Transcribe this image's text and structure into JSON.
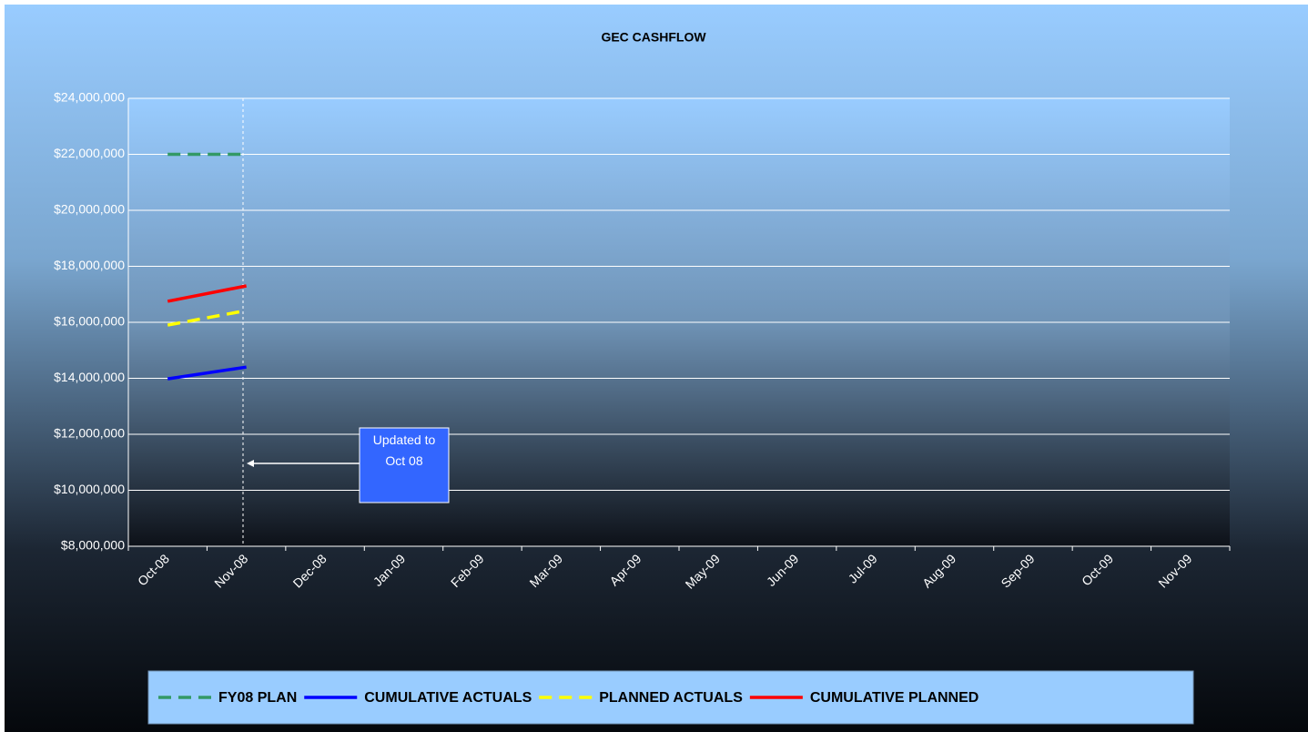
{
  "chart_data": {
    "type": "line",
    "title": "GEC CASHFLOW",
    "categories": [
      "Oct-08",
      "Nov-08",
      "Dec-08",
      "Jan-09",
      "Feb-09",
      "Mar-09",
      "Apr-09",
      "May-09",
      "Jun-09",
      "Jul-09",
      "Aug-09",
      "Sep-09",
      "Oct-09",
      "Nov-09"
    ],
    "series": [
      {
        "name": "FY08 PLAN",
        "color": "#339966",
        "dashed": true,
        "values": [
          22000000,
          22000000,
          null,
          null,
          null,
          null,
          null,
          null,
          null,
          null,
          null,
          null,
          null,
          null
        ]
      },
      {
        "name": "CUMULATIVE ACTUALS",
        "color": "#0000ff",
        "dashed": false,
        "values": [
          13980000,
          14400000,
          null,
          null,
          null,
          null,
          null,
          null,
          null,
          null,
          null,
          null,
          null,
          null
        ]
      },
      {
        "name": "PLANNED ACTUALS",
        "color": "#ffff00",
        "dashed": true,
        "values": [
          15900000,
          16420000,
          null,
          null,
          null,
          null,
          null,
          null,
          null,
          null,
          null,
          null,
          null,
          null
        ]
      },
      {
        "name": "CUMULATIVE PLANNED",
        "color": "#ff0000",
        "dashed": false,
        "values": [
          16750000,
          17300000,
          null,
          null,
          null,
          null,
          null,
          null,
          null,
          null,
          null,
          null,
          null,
          null
        ]
      }
    ],
    "ylim": [
      8000000,
      24000000
    ],
    "yticks": [
      {
        "value": 8000000,
        "label": "$8,000,000"
      },
      {
        "value": 10000000,
        "label": "$10,000,000"
      },
      {
        "value": 12000000,
        "label": "$12,000,000"
      },
      {
        "value": 14000000,
        "label": "$14,000,000"
      },
      {
        "value": 16000000,
        "label": "$16,000,000"
      },
      {
        "value": 18000000,
        "label": "$18,000,000"
      },
      {
        "value": 20000000,
        "label": "$20,000,000"
      },
      {
        "value": 22000000,
        "label": "$22,000,000"
      },
      {
        "value": 24000000,
        "label": "$24,000,000"
      }
    ],
    "grid": true,
    "annotation": "Updated to Oct 08",
    "legend": "bottom"
  }
}
